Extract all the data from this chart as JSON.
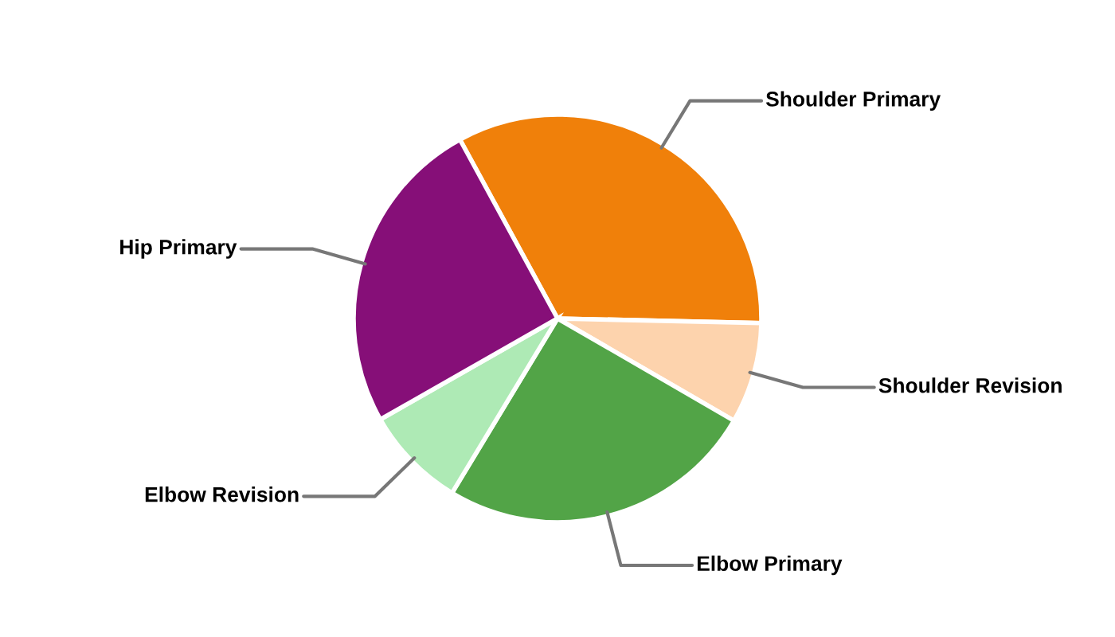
{
  "chart_data": {
    "type": "pie",
    "categories": [
      "Shoulder Primary",
      "Shoulder Revision",
      "Elbow Primary",
      "Elbow Revision",
      "Hip Primary"
    ],
    "values": [
      33.3,
      8,
      25.3,
      8.1,
      25.3
    ],
    "colors": [
      "#f0800a",
      "#fdd3ad",
      "#52a447",
      "#aeeab5",
      "#860f78"
    ]
  }
}
